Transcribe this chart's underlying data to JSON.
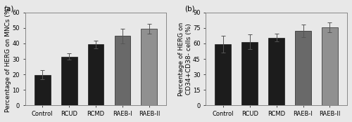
{
  "categories": [
    "Control",
    "RCUD",
    "RCMD",
    "RAEB-I",
    "RAEB-II"
  ],
  "panel_a": {
    "values": [
      19.8,
      31.46,
      39.3,
      44.71,
      49.4
    ],
    "errors": [
      2.79,
      2.08,
      2.63,
      4.77,
      3.08
    ],
    "ylabel": "Percentage of HERG on MNCs (%)",
    "ylim": [
      0,
      60
    ],
    "yticks": [
      0,
      10,
      20,
      30,
      40,
      50,
      60
    ],
    "label": "(a)"
  },
  "panel_b": {
    "values": [
      59.44,
      61.52,
      65.41,
      72.02,
      75.82
    ],
    "errors": [
      8.15,
      7.08,
      3.77,
      5.98,
      4.78
    ],
    "ylabel": "Percentage of HERG on\nCD34+CD38- cells (%)",
    "ylim": [
      0,
      90
    ],
    "yticks": [
      0,
      15,
      30,
      45,
      60,
      75,
      90
    ],
    "label": "(b)"
  },
  "bar_colors": [
    "#1c1c1c",
    "#1c1c1c",
    "#1c1c1c",
    "#696969",
    "#909090"
  ],
  "bar_colors_b": [
    "#1c1c1c",
    "#1c1c1c",
    "#1c1c1c",
    "#696969",
    "#909090"
  ],
  "edge_color": "#000000",
  "error_color": "#555555",
  "bg_color": "#e8e8e8",
  "plot_bg": "#e8e8e8",
  "ylabel_fontsize": 6.5,
  "tick_fontsize": 6,
  "label_fontsize": 7.5,
  "bar_width": 0.6
}
